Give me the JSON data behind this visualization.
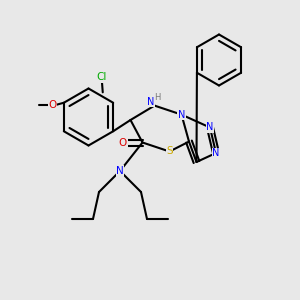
{
  "background_color": "#e8e8e8",
  "figsize": [
    3.0,
    3.0
  ],
  "dpi": 100,
  "bond_color": "#000000",
  "bond_lw": 1.5,
  "colors": {
    "N": "#0000FF",
    "O": "#DD0000",
    "S": "#CCAA00",
    "Cl": "#00AA00",
    "C": "#000000",
    "H": "#777777"
  }
}
